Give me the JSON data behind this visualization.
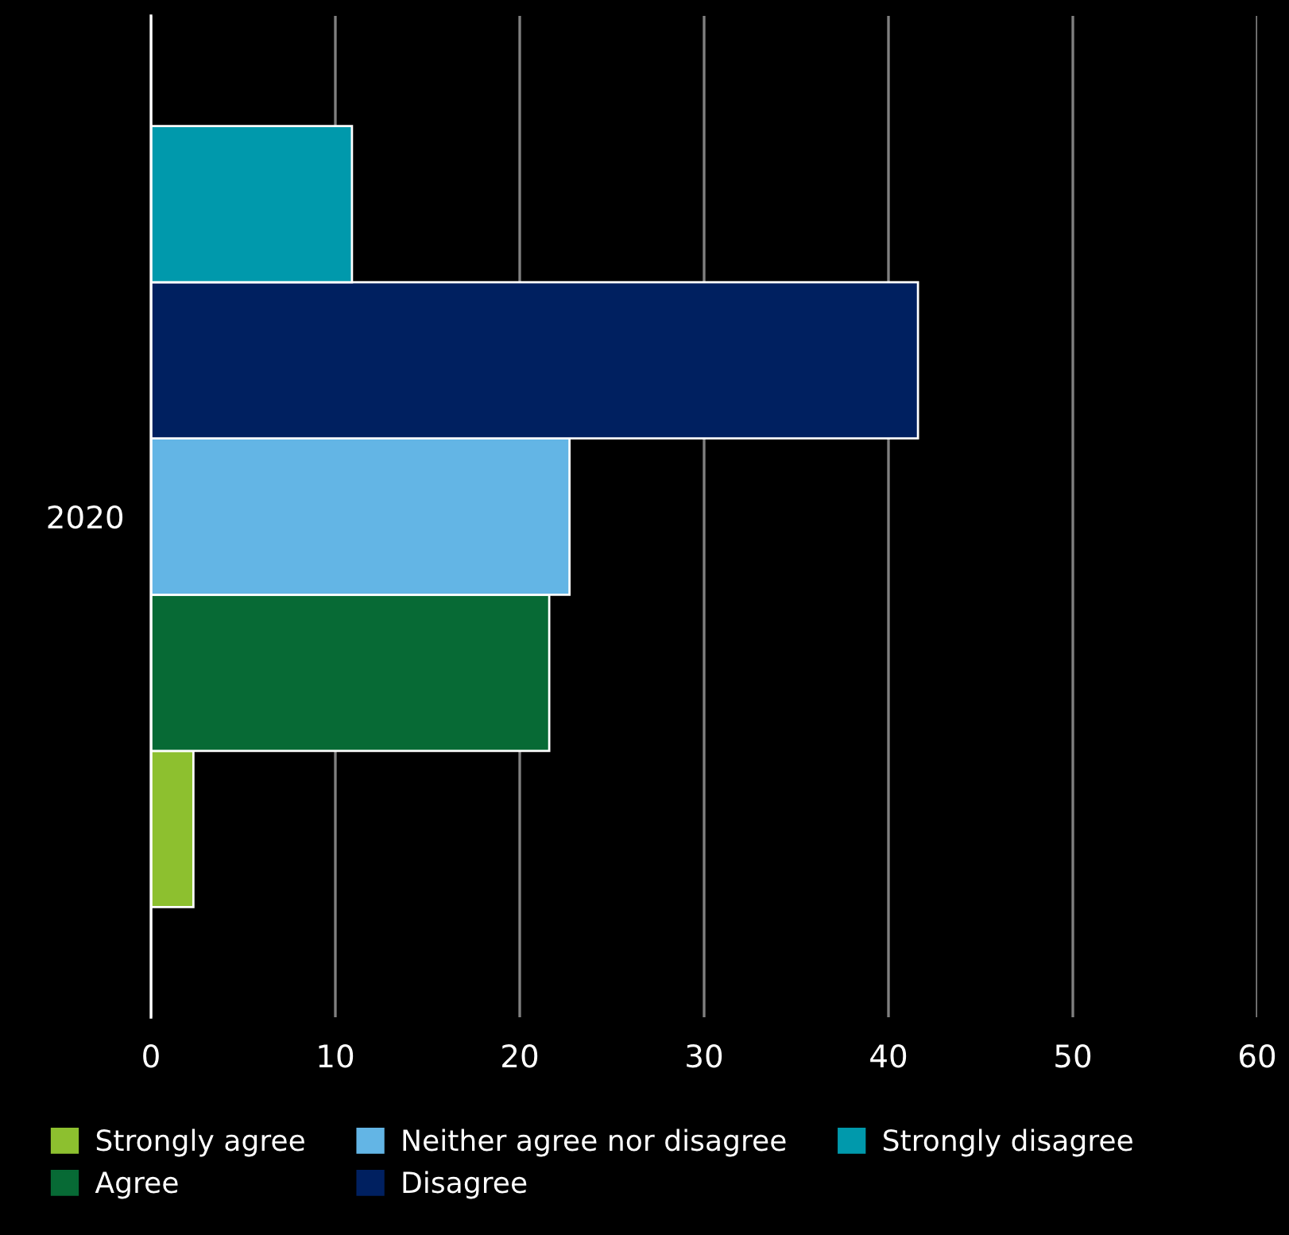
{
  "chart_data": {
    "type": "bar",
    "orientation": "horizontal",
    "categories": [
      "2020"
    ],
    "series": [
      {
        "name": "Strongly agree",
        "color": "#8dc02f",
        "values": [
          2.3
        ]
      },
      {
        "name": "Agree",
        "color": "#076a35",
        "values": [
          21.6
        ]
      },
      {
        "name": "Neither agree nor disagree",
        "color": "#63b5e5",
        "values": [
          22.7
        ]
      },
      {
        "name": "Disagree",
        "color": "#002060",
        "values": [
          41.6
        ]
      },
      {
        "name": "Strongly disagree",
        "color": "#0099ac",
        "values": [
          10.9
        ]
      }
    ],
    "xlim": [
      0,
      60
    ],
    "xticks": [
      0,
      10,
      20,
      30,
      40,
      50,
      60
    ],
    "grid": "x",
    "legend": "bottom"
  }
}
